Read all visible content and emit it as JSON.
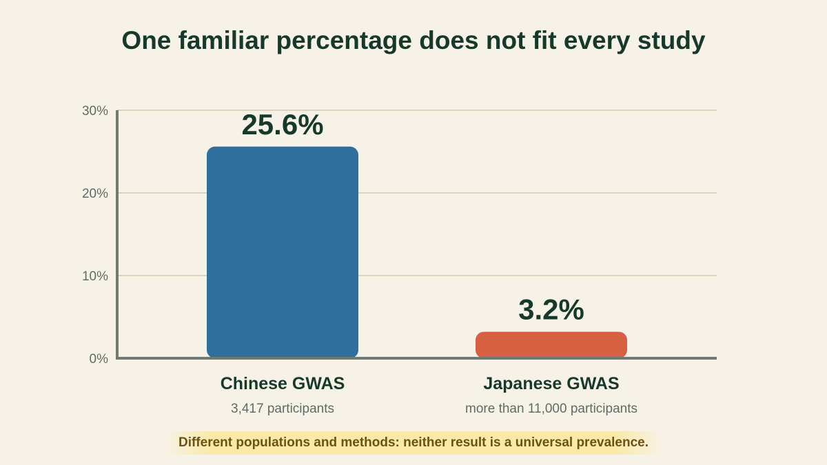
{
  "chart_data": {
    "type": "bar",
    "title": "One familiar percentage does not fit every study",
    "categories": [
      "Chinese GWAS",
      "Japanese GWAS"
    ],
    "subtitles": [
      "3,417 participants",
      "more than 11,000 participants"
    ],
    "values": [
      25.6,
      3.2
    ],
    "value_labels": [
      "25.6%",
      "3.2%"
    ],
    "colors": [
      "#2e6f9e",
      "#d75f42"
    ],
    "ylim": [
      0,
      30
    ],
    "yticks": [
      0,
      10,
      20,
      30
    ],
    "ytick_labels": [
      "0%",
      "10%",
      "20%",
      "30%"
    ],
    "grid": true,
    "xlabel": "",
    "ylabel": ""
  },
  "footnote": "Different populations and methods: neither result is a universal prevalence."
}
